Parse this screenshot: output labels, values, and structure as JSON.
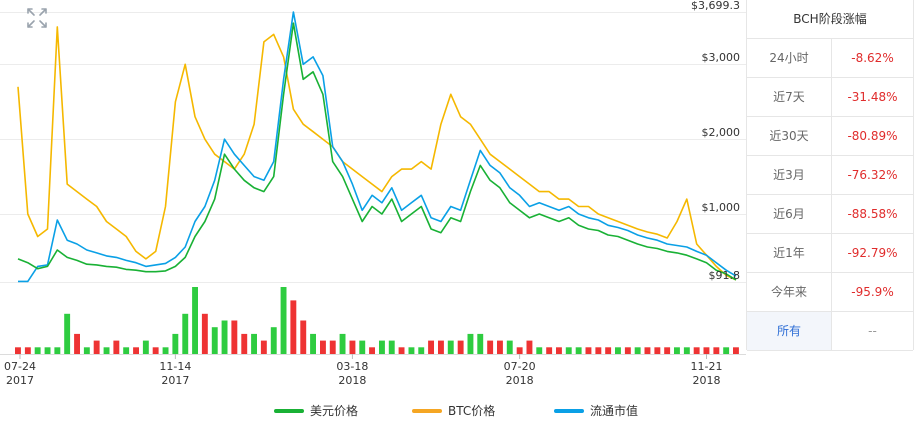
{
  "colors": {
    "usd": "#19b135",
    "btc": "#f5b800",
    "mcap": "#0aa0e6",
    "vol_up": "#2ecc40",
    "vol_down": "#ee3333",
    "grid": "#ececec"
  },
  "legend": {
    "usd_label": "美元价格",
    "btc_label": "BTC价格",
    "mcap_label": "流通市值"
  },
  "side_panel": {
    "title": "BCH阶段涨幅",
    "rows": [
      {
        "label": "24小时",
        "value": "-8.62%"
      },
      {
        "label": "近7天",
        "value": "-31.48%"
      },
      {
        "label": "近30天",
        "value": "-80.89%"
      },
      {
        "label": "近3月",
        "value": "-76.32%"
      },
      {
        "label": "近6月",
        "value": "-88.58%"
      },
      {
        "label": "近1年",
        "value": "-92.79%"
      },
      {
        "label": "今年来",
        "value": "-95.9%"
      },
      {
        "label": "所有",
        "value": "--"
      }
    ]
  },
  "icons": {
    "expand": "expand-arrows-icon"
  },
  "chart_data": {
    "type": "line",
    "title": "",
    "x_tick_labels": [
      {
        "date": "07-24",
        "year": "2017"
      },
      {
        "date": "11-14",
        "year": "2017"
      },
      {
        "date": "03-18",
        "year": "2018"
      },
      {
        "date": "07-20",
        "year": "2018"
      },
      {
        "date": "11-21",
        "year": "2018"
      }
    ],
    "y_tick_labels": [
      "$3,699.3",
      "$3,000",
      "$2,000",
      "$1,000",
      "$91.8"
    ],
    "ylim": [
      91.8,
      3699.3
    ],
    "grid": true,
    "legend_position": "bottom",
    "series": [
      {
        "name": "美元价格",
        "color": "#19b135",
        "values": [
          400,
          350,
          270,
          300,
          520,
          420,
          380,
          330,
          320,
          300,
          290,
          260,
          250,
          230,
          230,
          240,
          300,
          420,
          700,
          900,
          1200,
          1800,
          1600,
          1450,
          1350,
          1300,
          1500,
          2600,
          3550,
          2800,
          2900,
          2600,
          1700,
          1500,
          1200,
          900,
          1100,
          1000,
          1200,
          900,
          1000,
          1100,
          800,
          750,
          950,
          900,
          1300,
          1650,
          1450,
          1350,
          1150,
          1050,
          950,
          1000,
          950,
          900,
          950,
          850,
          800,
          780,
          720,
          700,
          650,
          600,
          560,
          540,
          500,
          480,
          450,
          400,
          350,
          250,
          200,
          120
        ]
      },
      {
        "name": "BTC价格",
        "color": "#f5b800",
        "values": [
          2700,
          1000,
          700,
          800,
          3500,
          1400,
          1300,
          1200,
          1100,
          900,
          800,
          700,
          500,
          400,
          500,
          1100,
          2500,
          3000,
          2300,
          2000,
          1800,
          1700,
          1600,
          1800,
          2200,
          3300,
          3400,
          3100,
          2400,
          2200,
          2100,
          2000,
          1900,
          1700,
          1600,
          1500,
          1400,
          1300,
          1500,
          1600,
          1600,
          1700,
          1600,
          2200,
          2600,
          2300,
          2200,
          2000,
          1800,
          1700,
          1600,
          1500,
          1400,
          1300,
          1300,
          1200,
          1200,
          1100,
          1100,
          1000,
          950,
          900,
          850,
          800,
          760,
          730,
          680,
          900,
          1200,
          600,
          450,
          300,
          180,
          120
        ]
      },
      {
        "name": "流通市值",
        "color": "#0aa0e6",
        "values": [
          100,
          100,
          300,
          320,
          920,
          650,
          600,
          520,
          480,
          440,
          420,
          380,
          350,
          300,
          320,
          340,
          420,
          560,
          900,
          1100,
          1450,
          2000,
          1800,
          1650,
          1500,
          1450,
          1700,
          2800,
          3699,
          3000,
          3100,
          2850,
          1900,
          1700,
          1400,
          1050,
          1250,
          1150,
          1350,
          1050,
          1150,
          1250,
          950,
          900,
          1100,
          1050,
          1450,
          1850,
          1650,
          1550,
          1350,
          1250,
          1100,
          1150,
          1100,
          1050,
          1100,
          1000,
          950,
          920,
          850,
          820,
          780,
          720,
          680,
          650,
          600,
          580,
          560,
          500,
          450,
          350,
          250,
          170
        ]
      },
      {
        "name": "volume",
        "values": [
          1,
          1,
          1,
          1,
          1,
          6,
          3,
          1,
          2,
          1,
          2,
          1,
          1,
          2,
          1,
          1,
          3,
          6,
          10,
          6,
          4,
          5,
          5,
          3,
          3,
          2,
          4,
          10,
          8,
          5,
          3,
          2,
          2,
          3,
          2,
          2,
          1,
          2,
          2,
          1,
          1,
          1,
          2,
          2,
          2,
          2,
          3,
          3,
          2,
          2,
          2,
          1,
          2,
          1,
          1,
          1,
          1,
          1,
          1,
          1,
          1,
          1,
          1,
          1,
          1,
          1,
          1,
          1,
          1,
          1,
          1,
          1,
          1,
          1
        ]
      },
      {
        "name": "volume_direction",
        "values": [
          0,
          0,
          1,
          1,
          1,
          1,
          0,
          1,
          0,
          1,
          0,
          1,
          0,
          1,
          0,
          1,
          1,
          1,
          1,
          0,
          1,
          1,
          0,
          0,
          1,
          0,
          1,
          1,
          0,
          0,
          1,
          0,
          0,
          1,
          0,
          1,
          0,
          1,
          1,
          0,
          1,
          1,
          0,
          0,
          1,
          0,
          1,
          1,
          0,
          0,
          1,
          0,
          0,
          1,
          0,
          0,
          1,
          1,
          0,
          0,
          0,
          1,
          0,
          1,
          0,
          0,
          0,
          1,
          1,
          0,
          0,
          0,
          1,
          0
        ]
      }
    ]
  }
}
